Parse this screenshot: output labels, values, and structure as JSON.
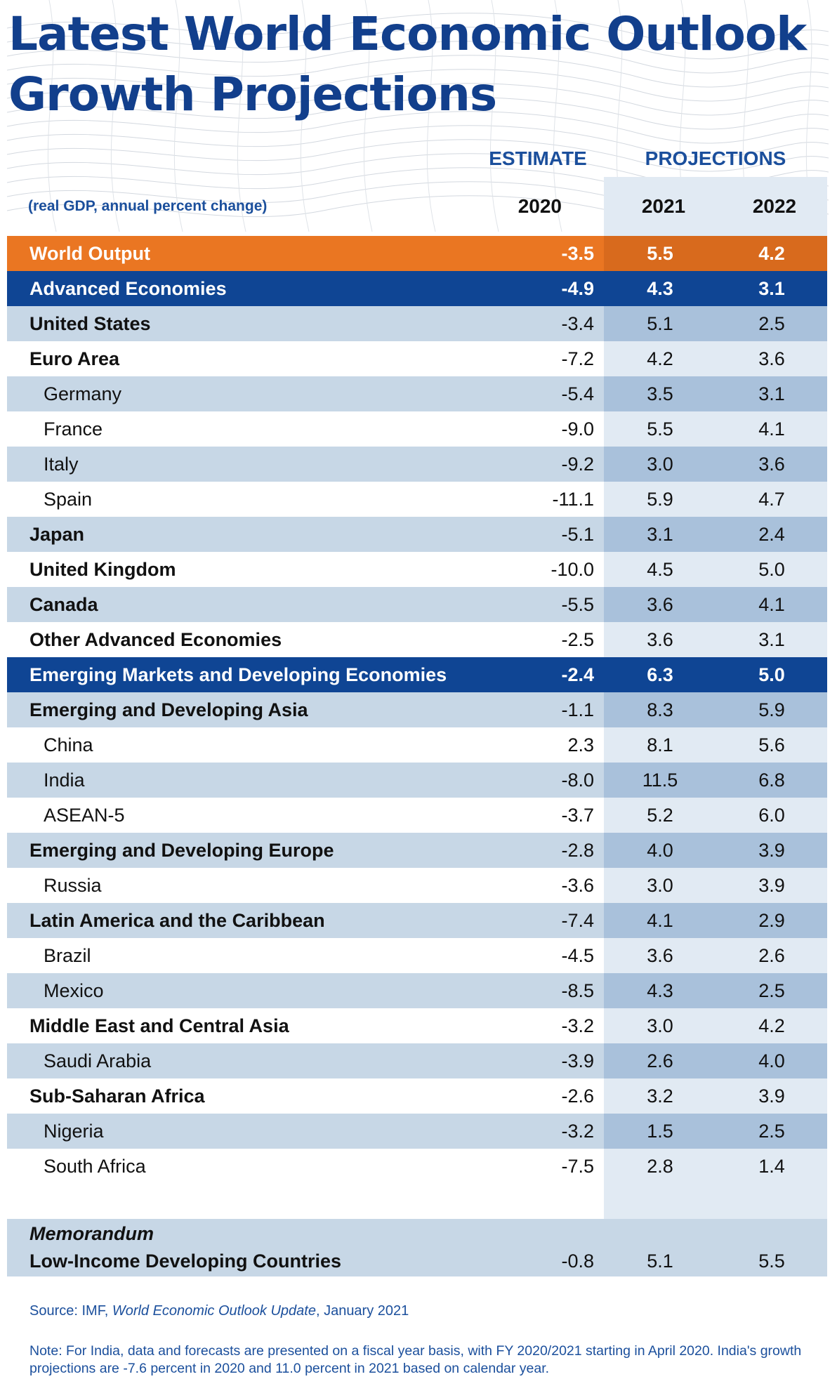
{
  "title_line1": "Latest World Economic Outlook",
  "title_line2": "Growth Projections",
  "header": {
    "estimate": "ESTIMATE",
    "projections": "PROJECTIONS",
    "unit": "(real GDP, annual percent change)",
    "years": [
      "2020",
      "2021",
      "2022"
    ]
  },
  "colors": {
    "title": "#123f8c",
    "world_output_row": "#ea7622",
    "group_row": "#0f4594",
    "shaded_row": "#c7d7e6",
    "projection_column": "#e1eaf3"
  },
  "chart_data": {
    "type": "table",
    "columns": [
      "2020",
      "2021",
      "2022"
    ],
    "rows": [
      {
        "name": "World Output",
        "style": "world",
        "indent": 0,
        "values": [
          "-3.5",
          "5.5",
          "4.2"
        ]
      },
      {
        "name": "Advanced Economies",
        "style": "group",
        "indent": 0,
        "values": [
          "-4.9",
          "4.3",
          "3.1"
        ]
      },
      {
        "name": "United States",
        "style": "shade",
        "indent": 0,
        "values": [
          "-3.4",
          "5.1",
          "2.5"
        ]
      },
      {
        "name": "Euro Area",
        "style": "plain",
        "indent": 0,
        "values": [
          "-7.2",
          "4.2",
          "3.6"
        ]
      },
      {
        "name": "Germany",
        "style": "shade",
        "indent": 1,
        "values": [
          "-5.4",
          "3.5",
          "3.1"
        ]
      },
      {
        "name": "France",
        "style": "plain",
        "indent": 1,
        "values": [
          "-9.0",
          "5.5",
          "4.1"
        ]
      },
      {
        "name": "Italy",
        "style": "shade",
        "indent": 1,
        "values": [
          "-9.2",
          "3.0",
          "3.6"
        ]
      },
      {
        "name": "Spain",
        "style": "plain",
        "indent": 1,
        "values": [
          "-11.1",
          "5.9",
          "4.7"
        ]
      },
      {
        "name": "Japan",
        "style": "shade",
        "indent": 0,
        "values": [
          "-5.1",
          "3.1",
          "2.4"
        ]
      },
      {
        "name": "United Kingdom",
        "style": "plain",
        "indent": 0,
        "values": [
          "-10.0",
          "4.5",
          "5.0"
        ]
      },
      {
        "name": "Canada",
        "style": "shade",
        "indent": 0,
        "values": [
          "-5.5",
          "3.6",
          "4.1"
        ]
      },
      {
        "name": "Other Advanced Economies",
        "style": "plain",
        "indent": 0,
        "values": [
          "-2.5",
          "3.6",
          "3.1"
        ]
      },
      {
        "name": "Emerging Markets and Developing Economies",
        "style": "group",
        "indent": 0,
        "values": [
          "-2.4",
          "6.3",
          "5.0"
        ]
      },
      {
        "name": "Emerging and Developing Asia",
        "style": "shade",
        "indent": 0,
        "values": [
          "-1.1",
          "8.3",
          "5.9"
        ]
      },
      {
        "name": "China",
        "style": "plain",
        "indent": 1,
        "values": [
          "2.3",
          "8.1",
          "5.6"
        ]
      },
      {
        "name": "India",
        "style": "shade",
        "indent": 1,
        "values": [
          "-8.0",
          "11.5",
          "6.8"
        ]
      },
      {
        "name": "ASEAN-5",
        "style": "plain",
        "indent": 1,
        "values": [
          "-3.7",
          "5.2",
          "6.0"
        ]
      },
      {
        "name": "Emerging and Developing Europe",
        "style": "shade",
        "indent": 0,
        "values": [
          "-2.8",
          "4.0",
          "3.9"
        ]
      },
      {
        "name": "Russia",
        "style": "plain",
        "indent": 1,
        "values": [
          "-3.6",
          "3.0",
          "3.9"
        ]
      },
      {
        "name": "Latin America and the Caribbean",
        "style": "shade",
        "indent": 0,
        "values": [
          "-7.4",
          "4.1",
          "2.9"
        ]
      },
      {
        "name": "Brazil",
        "style": "plain",
        "indent": 1,
        "values": [
          "-4.5",
          "3.6",
          "2.6"
        ]
      },
      {
        "name": "Mexico",
        "style": "shade",
        "indent": 1,
        "values": [
          "-8.5",
          "4.3",
          "2.5"
        ]
      },
      {
        "name": "Middle East and Central Asia",
        "style": "plain",
        "indent": 0,
        "values": [
          "-3.2",
          "3.0",
          "4.2"
        ]
      },
      {
        "name": "Saudi Arabia",
        "style": "shade",
        "indent": 1,
        "values": [
          "-3.9",
          "2.6",
          "4.0"
        ]
      },
      {
        "name": "Sub-Saharan Africa",
        "style": "plain",
        "indent": 0,
        "values": [
          "-2.6",
          "3.2",
          "3.9"
        ]
      },
      {
        "name": "Nigeria",
        "style": "shade",
        "indent": 1,
        "values": [
          "-3.2",
          "1.5",
          "2.5"
        ]
      },
      {
        "name": "South Africa",
        "style": "plain",
        "indent": 1,
        "values": [
          "-7.5",
          "2.8",
          "1.4"
        ]
      }
    ],
    "memorandum": {
      "label": "Memorandum",
      "name": "Low-Income Developing Countries",
      "values": [
        "-0.8",
        "5.1",
        "5.5"
      ]
    }
  },
  "source": {
    "prefix": "Source: IMF, ",
    "publication": "World Economic Outlook Update",
    "suffix": ", January 2021"
  },
  "note": "Note: For India, data and forecasts are presented on a fiscal year basis, with FY 2020/2021 starting in April 2020. India's growth projections are -7.6 percent in 2020 and 11.0 percent in 2021 based on calendar year."
}
